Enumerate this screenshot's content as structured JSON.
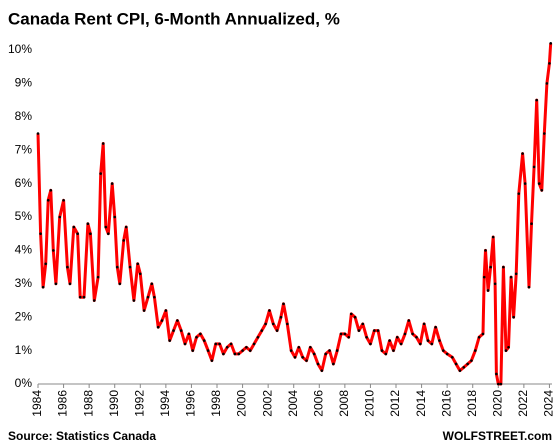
{
  "chart_data": {
    "type": "line",
    "title": "Canada Rent CPI, 6-Month Annualized, %",
    "source": "Source: Statistics Canada",
    "credit": "WOLFSTREET.com",
    "xlim": [
      1984,
      2024.2
    ],
    "xticks": [
      1984,
      1986,
      1988,
      1990,
      1992,
      1994,
      1996,
      1998,
      2000,
      2002,
      2004,
      2006,
      2008,
      2010,
      2012,
      2014,
      2016,
      2018,
      2020,
      2022,
      2024
    ],
    "ylim": [
      0,
      10.3
    ],
    "yticks": [
      {
        "value": 0,
        "label": "0%"
      },
      {
        "value": 1,
        "label": "1%"
      },
      {
        "value": 2,
        "label": "2%"
      },
      {
        "value": 3,
        "label": "3%"
      },
      {
        "value": 4,
        "label": "4%"
      },
      {
        "value": 5,
        "label": "5%"
      },
      {
        "value": 6,
        "label": "6%"
      },
      {
        "value": 7,
        "label": "7%"
      },
      {
        "value": 8,
        "label": "8%"
      },
      {
        "value": 9,
        "label": "9%"
      },
      {
        "value": 10,
        "label": "10%"
      }
    ],
    "grid": false,
    "series": [
      {
        "color": "#ff0000",
        "x": [
          1984.0,
          1984.2,
          1984.4,
          1984.6,
          1984.8,
          1985.0,
          1985.2,
          1985.4,
          1985.7,
          1986.0,
          1986.3,
          1986.5,
          1986.8,
          1987.1,
          1987.3,
          1987.6,
          1987.9,
          1988.1,
          1988.4,
          1988.7,
          1988.9,
          1989.1,
          1989.3,
          1989.5,
          1989.8,
          1990.0,
          1990.2,
          1990.4,
          1990.7,
          1990.9,
          1991.2,
          1991.5,
          1991.8,
          1992.0,
          1992.3,
          1992.6,
          1992.9,
          1993.1,
          1993.4,
          1993.7,
          1994.0,
          1994.3,
          1994.6,
          1994.9,
          1995.2,
          1995.5,
          1995.8,
          1996.1,
          1996.4,
          1996.7,
          1997.0,
          1997.3,
          1997.6,
          1997.9,
          1998.2,
          1998.5,
          1998.8,
          1999.1,
          1999.4,
          1999.7,
          2000.0,
          2000.3,
          2000.6,
          2000.9,
          2001.2,
          2001.5,
          2001.8,
          2002.1,
          2002.4,
          2002.7,
          2003.0,
          2003.2,
          2003.5,
          2003.8,
          2004.1,
          2004.4,
          2004.7,
          2005.0,
          2005.3,
          2005.6,
          2005.9,
          2006.2,
          2006.5,
          2006.8,
          2007.1,
          2007.4,
          2007.7,
          2008.0,
          2008.3,
          2008.5,
          2008.8,
          2009.1,
          2009.4,
          2009.7,
          2010.0,
          2010.3,
          2010.6,
          2010.9,
          2011.2,
          2011.5,
          2011.8,
          2012.1,
          2012.4,
          2012.7,
          2013.0,
          2013.3,
          2013.6,
          2013.9,
          2014.2,
          2014.5,
          2014.8,
          2015.1,
          2015.4,
          2015.7,
          2016.0,
          2016.4,
          2016.7,
          2017.0,
          2017.3,
          2017.6,
          2017.9,
          2018.2,
          2018.5,
          2018.8,
          2018.9,
          2019.0,
          2019.2,
          2019.4,
          2019.6,
          2019.75,
          2019.85,
          2020.0,
          2020.2,
          2020.4,
          2020.6,
          2020.8,
          2021.0,
          2021.2,
          2021.4,
          2021.6,
          2021.9,
          2022.1,
          2022.4,
          2022.6,
          2022.8,
          2023.0,
          2023.2,
          2023.4,
          2023.6,
          2023.8,
          2024.0,
          2024.1
        ],
        "values": [
          7.5,
          4.5,
          2.9,
          3.6,
          5.5,
          5.8,
          4.0,
          3.0,
          5.0,
          5.5,
          3.5,
          3.0,
          4.7,
          4.5,
          2.6,
          2.6,
          4.8,
          4.5,
          2.5,
          3.2,
          6.3,
          7.2,
          4.7,
          4.5,
          6.0,
          5.0,
          3.5,
          3.0,
          4.3,
          4.7,
          3.5,
          2.5,
          3.6,
          3.3,
          2.2,
          2.6,
          3.0,
          2.6,
          1.7,
          1.9,
          2.2,
          1.3,
          1.6,
          1.9,
          1.6,
          1.2,
          1.5,
          1.0,
          1.4,
          1.5,
          1.3,
          1.0,
          0.7,
          1.2,
          1.2,
          0.9,
          1.1,
          1.2,
          0.9,
          0.9,
          1.0,
          1.1,
          1.0,
          1.2,
          1.4,
          1.6,
          1.8,
          2.2,
          1.8,
          1.6,
          2.0,
          2.4,
          1.8,
          1.0,
          0.8,
          1.1,
          0.8,
          0.7,
          1.1,
          0.9,
          0.6,
          0.4,
          0.9,
          1.0,
          0.6,
          1.0,
          1.5,
          1.5,
          1.4,
          2.1,
          2.0,
          1.6,
          1.8,
          1.4,
          1.2,
          1.6,
          1.6,
          1.0,
          0.9,
          1.3,
          1.0,
          1.4,
          1.2,
          1.5,
          1.9,
          1.5,
          1.4,
          1.2,
          1.8,
          1.3,
          1.2,
          1.7,
          1.3,
          1.0,
          0.9,
          0.8,
          0.6,
          0.4,
          0.5,
          0.6,
          0.7,
          1.0,
          1.4,
          1.5,
          3.2,
          4.0,
          2.8,
          3.5,
          4.4,
          3.0,
          0.3,
          0.0,
          0.0,
          3.5,
          1.0,
          1.1,
          3.2,
          2.0,
          3.3,
          5.7,
          6.9,
          6.0,
          2.9,
          4.8,
          6.5,
          8.5,
          6.0,
          5.8,
          7.5,
          9.0,
          9.6,
          10.2
        ]
      }
    ]
  }
}
